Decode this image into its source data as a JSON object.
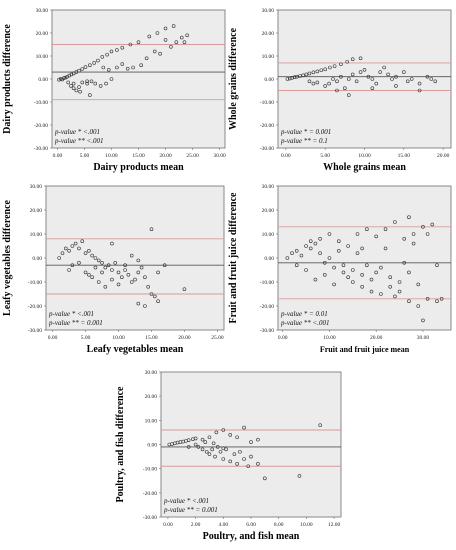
{
  "colors": {
    "plot_bg": "#ececec",
    "frame": "#6e6e6e",
    "mean_line": "#555555",
    "limit_line": "#d99a9a",
    "marker": "#333333"
  },
  "chart_data": [
    {
      "type": "scatter",
      "xlabel": "Dairy products mean",
      "ylabel": "Dairy products difference",
      "xlim": [
        -1,
        31
      ],
      "ylim": [
        -30,
        30
      ],
      "xticks": [
        "0.00",
        "5.00",
        "10.00",
        "15.00",
        "20.00",
        "25.00",
        "30.00"
      ],
      "yticks": [
        "30.00",
        "20.00",
        "10.00",
        "0.00",
        "-10.00",
        "-20.00",
        "-30.00"
      ],
      "mean_diff": 3,
      "upper_loa": 15,
      "lower_loa": -9,
      "annotations": [
        "p-value * <.001",
        "p-value ** <.001"
      ],
      "points": [
        [
          0.3,
          -0.3
        ],
        [
          0.6,
          0.1
        ],
        [
          0.9,
          -0.2
        ],
        [
          1.2,
          0.4
        ],
        [
          1.5,
          0.6
        ],
        [
          1.8,
          1
        ],
        [
          2.2,
          1.5
        ],
        [
          2.6,
          2
        ],
        [
          3,
          2.4
        ],
        [
          3.5,
          3
        ],
        [
          4,
          3.6
        ],
        [
          4.6,
          4.4
        ],
        [
          5.2,
          5.2
        ],
        [
          6,
          6
        ],
        [
          6.8,
          7
        ],
        [
          7.5,
          8
        ],
        [
          8.3,
          9.6
        ],
        [
          9.2,
          10.6
        ],
        [
          10,
          12
        ],
        [
          11,
          12.6
        ],
        [
          12,
          13.6
        ],
        [
          13.5,
          15
        ],
        [
          15,
          16
        ],
        [
          17,
          18.5
        ],
        [
          18.5,
          20
        ],
        [
          20,
          22
        ],
        [
          21.5,
          23
        ],
        [
          3,
          -2
        ],
        [
          2.5,
          -3
        ],
        [
          3.5,
          -5
        ],
        [
          4,
          -3.5
        ],
        [
          4.6,
          -1.5
        ],
        [
          5.5,
          -2
        ],
        [
          6.3,
          -1
        ],
        [
          7,
          -2
        ],
        [
          8,
          -3
        ],
        [
          9,
          -2
        ],
        [
          10,
          0
        ],
        [
          8.5,
          5
        ],
        [
          9.5,
          4
        ],
        [
          11,
          5
        ],
        [
          12,
          6.5
        ],
        [
          13,
          4.5
        ],
        [
          14,
          5
        ],
        [
          15.5,
          6
        ],
        [
          16.5,
          9
        ],
        [
          18,
          12
        ],
        [
          19,
          11
        ],
        [
          21,
          14
        ],
        [
          22,
          16
        ],
        [
          23,
          18
        ],
        [
          24,
          19
        ],
        [
          23.5,
          16
        ],
        [
          20,
          17
        ],
        [
          5.5,
          -1
        ],
        [
          2,
          -1.5
        ],
        [
          3,
          -4
        ],
        [
          4.2,
          -5.5
        ],
        [
          6,
          -7
        ]
      ]
    },
    {
      "type": "scatter",
      "xlabel": "Whole grains mean",
      "ylabel": "Whole grains difference",
      "xlim": [
        -1,
        21
      ],
      "ylim": [
        -30,
        30
      ],
      "xticks": [
        "0.00",
        "5.00",
        "10.00",
        "15.00",
        "20.00"
      ],
      "yticks": [
        "30.00",
        "20.00",
        "10.00",
        "0.00",
        "-10.00",
        "-20.00",
        "-30.00"
      ],
      "mean_diff": 1,
      "upper_loa": 7,
      "lower_loa": -5,
      "annotations": [
        "p-value * = 0.001",
        "p-value ** = 0.1"
      ],
      "points": [
        [
          0.2,
          0
        ],
        [
          0.5,
          0.2
        ],
        [
          0.8,
          0.5
        ],
        [
          1.1,
          0.8
        ],
        [
          1.4,
          1
        ],
        [
          1.8,
          1.3
        ],
        [
          2.2,
          1.6
        ],
        [
          2.6,
          2
        ],
        [
          3,
          2.4
        ],
        [
          3.5,
          2.9
        ],
        [
          4,
          3.3
        ],
        [
          4.5,
          3.8
        ],
        [
          5,
          4.2
        ],
        [
          5.6,
          5
        ],
        [
          6.2,
          5.6
        ],
        [
          7,
          6.4
        ],
        [
          7.8,
          7.5
        ],
        [
          8.5,
          8.6
        ],
        [
          9.5,
          9
        ],
        [
          3,
          -1
        ],
        [
          3.5,
          -2
        ],
        [
          4,
          -1.5
        ],
        [
          5,
          -3
        ],
        [
          5.5,
          -2
        ],
        [
          6,
          0
        ],
        [
          6.5,
          -1
        ],
        [
          7,
          1
        ],
        [
          7.5,
          -4
        ],
        [
          8,
          0
        ],
        [
          8.5,
          2
        ],
        [
          9,
          -1
        ],
        [
          9.5,
          3
        ],
        [
          10,
          4
        ],
        [
          10.5,
          1
        ],
        [
          11,
          0
        ],
        [
          11.5,
          -2
        ],
        [
          12,
          3
        ],
        [
          12.5,
          5
        ],
        [
          13,
          2
        ],
        [
          13.5,
          0
        ],
        [
          14,
          1
        ],
        [
          15,
          3
        ],
        [
          15.5,
          -1
        ],
        [
          16,
          0
        ],
        [
          17,
          -2
        ],
        [
          18,
          1
        ],
        [
          18.5,
          0
        ],
        [
          19,
          -1
        ],
        [
          6.5,
          -5
        ],
        [
          8,
          -7
        ],
        [
          11,
          -4
        ],
        [
          14,
          -3
        ],
        [
          17,
          -5
        ]
      ]
    },
    {
      "type": "scatter",
      "xlabel": "Leafy vegetables mean",
      "ylabel": "Leafy vegetables difference",
      "xlim": [
        -1,
        26
      ],
      "ylim": [
        -30,
        30
      ],
      "xticks": [
        "0.00",
        "5.00",
        "10.00",
        "15.00",
        "20.00",
        "25.00"
      ],
      "yticks": [
        "30.00",
        "20.00",
        "10.00",
        "0.00",
        "-10.00",
        "-20.00",
        "-30.00"
      ],
      "mean_diff": -3,
      "upper_loa": 8,
      "lower_loa": -15,
      "annotations": [
        "p-value * <.001",
        "p-value ** = 0.001"
      ],
      "points": [
        [
          1,
          0
        ],
        [
          1.5,
          2
        ],
        [
          2,
          4
        ],
        [
          2.5,
          3
        ],
        [
          3,
          5
        ],
        [
          3.5,
          6
        ],
        [
          4,
          4
        ],
        [
          4.5,
          7
        ],
        [
          5,
          2
        ],
        [
          5.5,
          3
        ],
        [
          6,
          1
        ],
        [
          6.5,
          0
        ],
        [
          7,
          -1
        ],
        [
          7.5,
          -2
        ],
        [
          8,
          -4
        ],
        [
          8.5,
          -3
        ],
        [
          9,
          -5
        ],
        [
          9.5,
          -2
        ],
        [
          10,
          -6
        ],
        [
          10.5,
          -8
        ],
        [
          11,
          -5
        ],
        [
          11.5,
          -7
        ],
        [
          12,
          -10
        ],
        [
          12.5,
          -9
        ],
        [
          13,
          -6
        ],
        [
          13.5,
          -4
        ],
        [
          14,
          -8
        ],
        [
          14.5,
          -12
        ],
        [
          15,
          -15
        ],
        [
          15.5,
          -16
        ],
        [
          16,
          -18
        ],
        [
          14,
          -20
        ],
        [
          13,
          -19
        ],
        [
          2.5,
          -5
        ],
        [
          3,
          -3
        ],
        [
          4,
          -2
        ],
        [
          5,
          -6
        ],
        [
          6,
          -8
        ],
        [
          7,
          -10
        ],
        [
          8,
          -12
        ],
        [
          9,
          -9
        ],
        [
          10,
          -11
        ],
        [
          11,
          -3
        ],
        [
          12,
          1
        ],
        [
          13,
          -1
        ],
        [
          9,
          6
        ],
        [
          6.5,
          -4
        ],
        [
          5.5,
          -7
        ],
        [
          7.5,
          -6
        ],
        [
          20,
          -13
        ],
        [
          15,
          12
        ],
        [
          16,
          -6
        ],
        [
          17,
          -3
        ]
      ]
    },
    {
      "type": "scatter",
      "xlabel": "Fruit and fruit juice mean",
      "ylabel": "Fruit and fruit juice difference",
      "xlim": [
        -1,
        36
      ],
      "ylim": [
        -30,
        30
      ],
      "xticks": [
        "0.00",
        "10.00",
        "20.00",
        "30.00"
      ],
      "yticks": [
        "30.00",
        "20.00",
        "10.00",
        "0.00",
        "-10.00",
        "-20.00",
        "-30.00"
      ],
      "mean_diff": -2,
      "upper_loa": 13,
      "lower_loa": -17,
      "annotations": [
        "p-value * = 0.01",
        "p-value ** <.001"
      ],
      "points": [
        [
          1,
          0
        ],
        [
          2,
          2
        ],
        [
          3,
          3
        ],
        [
          4,
          1
        ],
        [
          5,
          5
        ],
        [
          6,
          4
        ],
        [
          7,
          6
        ],
        [
          8,
          2
        ],
        [
          9,
          -2
        ],
        [
          10,
          0
        ],
        [
          11,
          -4
        ],
        [
          12,
          3
        ],
        [
          13,
          -6
        ],
        [
          14,
          -8
        ],
        [
          15,
          -10
        ],
        [
          16,
          2
        ],
        [
          17,
          -12
        ],
        [
          18,
          -3
        ],
        [
          19,
          -14
        ],
        [
          20,
          -6
        ],
        [
          21,
          -15
        ],
        [
          22,
          4
        ],
        [
          23,
          -8
        ],
        [
          24,
          -16
        ],
        [
          25,
          -10
        ],
        [
          26,
          -2
        ],
        [
          27,
          -18
        ],
        [
          28,
          6
        ],
        [
          29,
          -20
        ],
        [
          30,
          -26
        ],
        [
          31,
          -17
        ],
        [
          32,
          14
        ],
        [
          33,
          -18
        ],
        [
          34,
          -17
        ],
        [
          8,
          8
        ],
        [
          10,
          10
        ],
        [
          12,
          7
        ],
        [
          14,
          5
        ],
        [
          16,
          10
        ],
        [
          18,
          12
        ],
        [
          20,
          9
        ],
        [
          22,
          12
        ],
        [
          24,
          15
        ],
        [
          26,
          8
        ],
        [
          28,
          10
        ],
        [
          30,
          13
        ],
        [
          3,
          -3
        ],
        [
          5,
          -5
        ],
        [
          7,
          -9
        ],
        [
          9,
          -7
        ],
        [
          11,
          -11
        ],
        [
          13,
          -3
        ],
        [
          15,
          -5
        ],
        [
          17,
          -7
        ],
        [
          19,
          -9
        ],
        [
          21,
          -4
        ],
        [
          23,
          -12
        ],
        [
          25,
          -14
        ],
        [
          27,
          -6
        ],
        [
          29,
          -11
        ],
        [
          6,
          7
        ],
        [
          17,
          4
        ],
        [
          27,
          17
        ],
        [
          31,
          10
        ],
        [
          33,
          -3
        ]
      ]
    },
    {
      "type": "scatter",
      "xlabel": "Poultry, and fish mean",
      "ylabel": "Poultry, and fish difference",
      "xlim": [
        -0.5,
        12.5
      ],
      "ylim": [
        -30,
        30
      ],
      "xticks": [
        "0.00",
        "2.00",
        "4.00",
        "6.00",
        "8.00",
        "10.00",
        "12.00"
      ],
      "yticks": [
        "30.00",
        "20.00",
        "10.00",
        "0.00",
        "-10.00",
        "-20.00",
        "-30.00"
      ],
      "mean_diff": -1,
      "upper_loa": 6,
      "lower_loa": -9,
      "annotations": [
        "p-value * <.001",
        "p-value ** = 0.001"
      ],
      "points": [
        [
          0.1,
          0
        ],
        [
          0.3,
          0.2
        ],
        [
          0.5,
          0.5
        ],
        [
          0.7,
          0.8
        ],
        [
          0.9,
          1
        ],
        [
          1.1,
          1.2
        ],
        [
          1.3,
          1.5
        ],
        [
          1.5,
          1.8
        ],
        [
          1.8,
          2.2
        ],
        [
          2,
          2.5
        ],
        [
          2.2,
          -1
        ],
        [
          2.5,
          -2
        ],
        [
          2.8,
          -3
        ],
        [
          3,
          -4
        ],
        [
          3.2,
          -2
        ],
        [
          3.4,
          -5
        ],
        [
          3.6,
          -1
        ],
        [
          3.8,
          -3
        ],
        [
          4,
          -6
        ],
        [
          4.2,
          -2
        ],
        [
          4.5,
          -7
        ],
        [
          4.8,
          -4
        ],
        [
          5,
          -8
        ],
        [
          5.2,
          -3
        ],
        [
          5.5,
          -6
        ],
        [
          5.8,
          -9
        ],
        [
          6,
          -5
        ],
        [
          6.5,
          -8
        ],
        [
          7,
          -14
        ],
        [
          9.5,
          -13
        ],
        [
          2.5,
          2
        ],
        [
          3,
          3
        ],
        [
          3.5,
          5
        ],
        [
          4,
          6
        ],
        [
          4.5,
          4
        ],
        [
          5,
          3
        ],
        [
          5.5,
          7
        ],
        [
          6,
          1
        ],
        [
          6.5,
          2
        ],
        [
          11,
          8
        ],
        [
          1.5,
          -1
        ],
        [
          2,
          0
        ],
        [
          2.7,
          1
        ],
        [
          3.3,
          0.5
        ],
        [
          4,
          -1.5
        ]
      ]
    }
  ]
}
